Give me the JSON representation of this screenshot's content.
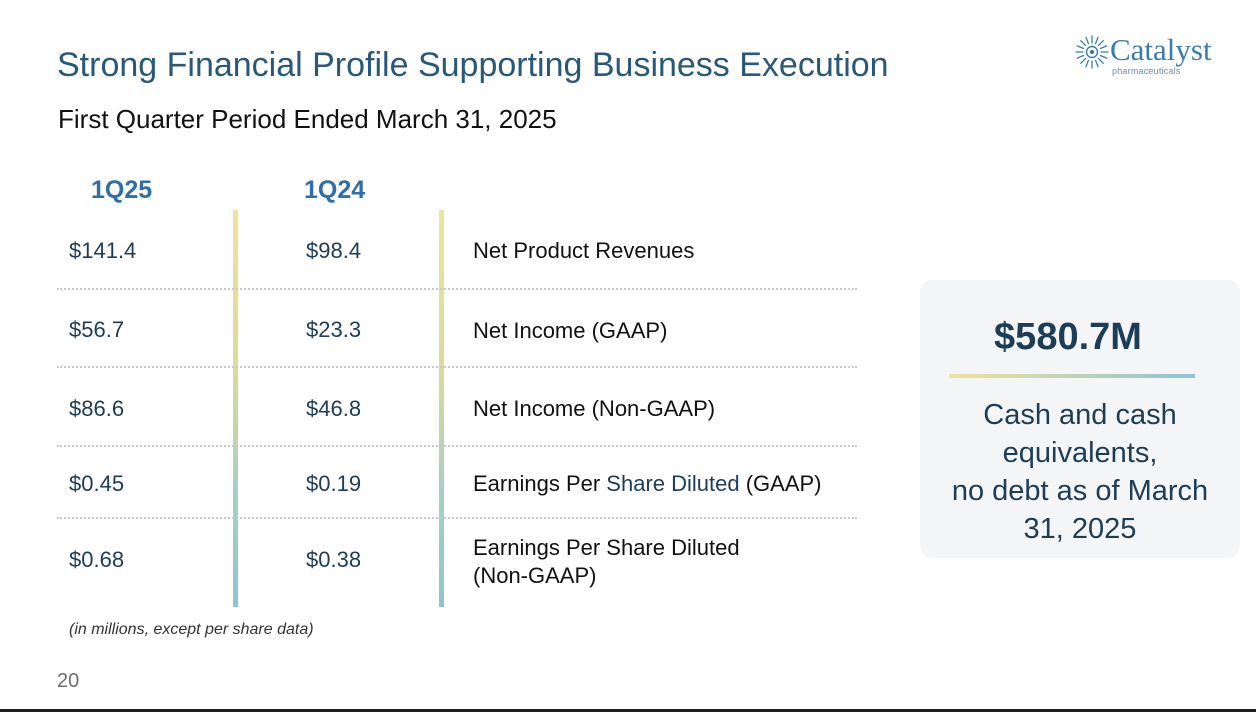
{
  "header": {
    "title": "Strong Financial Profile Supporting Business Execution",
    "subtitle": "First Quarter Period Ended March 31, 2025"
  },
  "logo": {
    "name": "Catalyst",
    "tagline": "pharmaceuticals",
    "icon": "starburst-logo-icon",
    "color": "#3a7ca8"
  },
  "table": {
    "columns": [
      "1Q25",
      "1Q24"
    ],
    "rows": [
      {
        "q25": "$141.4",
        "q24": "$98.4",
        "label": "Net Product Revenues"
      },
      {
        "q25": "$56.7",
        "q24": "$23.3",
        "label": "Net Income (GAAP)"
      },
      {
        "q25": "$86.6",
        "q24": "$46.8",
        "label": "Net Income (Non-GAAP)"
      },
      {
        "q25": "$0.45",
        "q24": "$0.19",
        "label_pre": "Earnings Per ",
        "label_hl": "Share Diluted",
        "label_post": " (GAAP)"
      },
      {
        "q25": "$0.68",
        "q24": "$0.38",
        "label_l1": "Earnings Per Share Diluted",
        "label_l2": "(Non-GAAP)"
      }
    ],
    "footnote": "(in millions, except per share data)"
  },
  "cash": {
    "amount": "$580.7M",
    "desc_l1": "Cash and cash",
    "desc_l2": "equivalents,",
    "desc_l3": "no debt as of March",
    "desc_l4": "31, 2025"
  },
  "page_number": "20",
  "colors": {
    "title": "#2a5877",
    "header_blue": "#2f6fa3",
    "value_navy": "#1d3c55",
    "bar_top": "#efe49a",
    "bar_bottom": "#8dc6d1"
  }
}
